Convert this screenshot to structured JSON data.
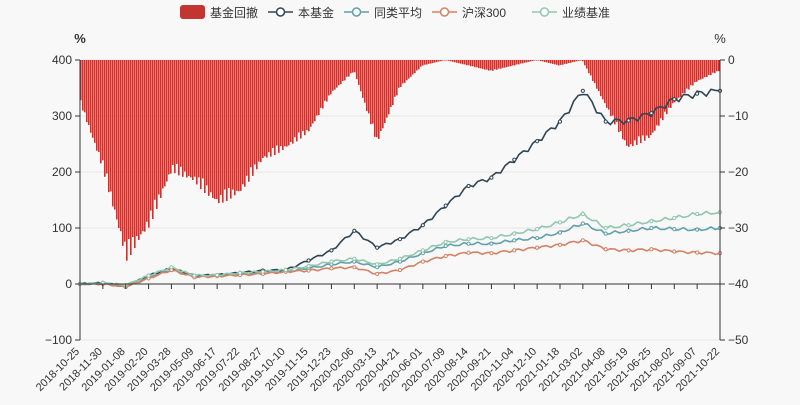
{
  "chart_data": {
    "type": "line",
    "left_axis": {
      "unit_label": "%",
      "min": -100,
      "max": 400,
      "ticks": [
        -100,
        0,
        100,
        200,
        300,
        400
      ]
    },
    "right_axis": {
      "unit_label": "%",
      "min": -50,
      "max": 0,
      "ticks": [
        -50,
        -40,
        -30,
        -20,
        -10,
        0
      ]
    },
    "x_tick_labels": [
      "2018-10-25",
      "2018-11-30",
      "2019-01-08",
      "2019-02-20",
      "2019-03-28",
      "2019-05-09",
      "2019-06-17",
      "2019-07-22",
      "2019-08-27",
      "2019-10-10",
      "2019-11-15",
      "2019-12-23",
      "2020-02-06",
      "2020-03-13",
      "2020-04-21",
      "2020-06-01",
      "2020-07-09",
      "2020-08-14",
      "2020-09-21",
      "2020-11-04",
      "2020-12-10",
      "2021-01-18",
      "2021-03-02",
      "2021-04-08",
      "2021-05-19",
      "2021-06-25",
      "2021-08-02",
      "2021-09-07",
      "2021-10-22"
    ],
    "legend": {
      "position": "top-center",
      "items": [
        {
          "name": "基金回撤",
          "symbol": "bar",
          "color": "#c23531"
        },
        {
          "name": "本基金",
          "symbol": "line",
          "color": "#2f4554"
        },
        {
          "name": "同类平均",
          "symbol": "line",
          "color": "#61a0a8"
        },
        {
          "name": "沪深300",
          "symbol": "line",
          "color": "#d48265"
        },
        {
          "name": "业绩基准",
          "symbol": "line",
          "color": "#91c7ae"
        }
      ]
    },
    "series": [
      {
        "name": "本基金",
        "axis": "left",
        "color": "#2f4554",
        "values": [
          0,
          2,
          -5,
          15,
          28,
          15,
          16,
          20,
          24,
          25,
          42,
          60,
          95,
          65,
          80,
          105,
          140,
          175,
          190,
          222,
          255,
          290,
          345,
          290,
          292,
          305,
          330,
          340,
          345
        ]
      },
      {
        "name": "同类平均",
        "axis": "left",
        "color": "#61a0a8",
        "values": [
          0,
          1,
          -3,
          12,
          25,
          13,
          15,
          18,
          20,
          22,
          28,
          35,
          40,
          30,
          40,
          55,
          68,
          72,
          72,
          78,
          82,
          92,
          108,
          90,
          95,
          100,
          98,
          97,
          100
        ]
      },
      {
        "name": "沪深300",
        "axis": "left",
        "color": "#d48265",
        "values": [
          0,
          0,
          -5,
          10,
          25,
          12,
          14,
          16,
          18,
          22,
          24,
          28,
          30,
          18,
          25,
          40,
          50,
          56,
          55,
          60,
          65,
          70,
          78,
          62,
          60,
          62,
          58,
          56,
          55
        ]
      },
      {
        "name": "业绩基准",
        "axis": "left",
        "color": "#91c7ae",
        "values": [
          0,
          2,
          -2,
          15,
          30,
          15,
          16,
          20,
          22,
          25,
          32,
          40,
          45,
          35,
          45,
          60,
          75,
          80,
          82,
          90,
          98,
          110,
          125,
          100,
          105,
          112,
          118,
          125,
          128
        ]
      },
      {
        "name": "基金回撤",
        "axis": "right",
        "type": "bar",
        "color": "#c23531",
        "values": [
          -8,
          -20,
          -36,
          -30,
          -20,
          -22,
          -26,
          -24,
          -18,
          -16,
          -13,
          -6,
          -2,
          -15,
          -5,
          -1,
          0,
          -1,
          -2,
          -1,
          0,
          -1,
          0,
          -8,
          -16,
          -14,
          -8,
          -4,
          -2
        ]
      }
    ]
  }
}
